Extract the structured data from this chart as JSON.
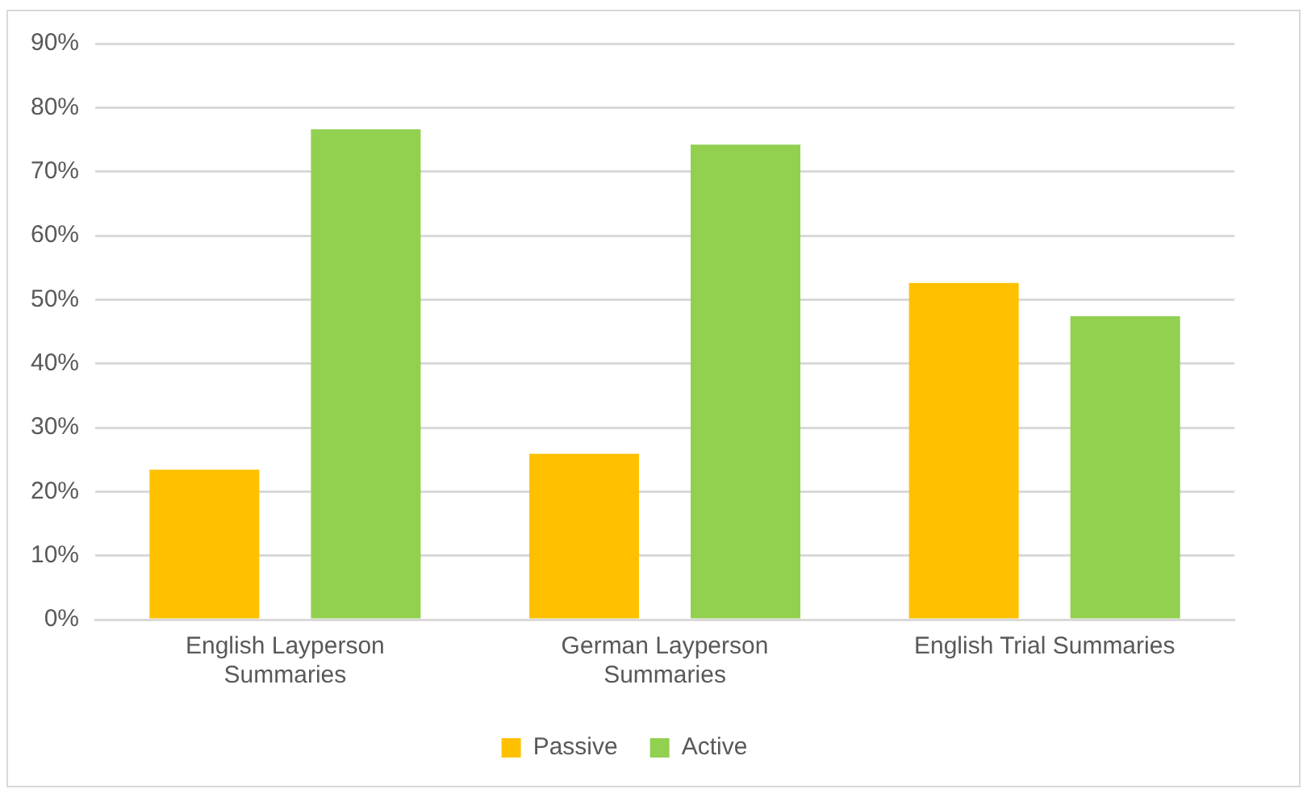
{
  "chart_data": {
    "type": "bar",
    "categories": [
      "English Layperson Summaries",
      "German Layperson Summaries",
      "English Trial Summaries"
    ],
    "series": [
      {
        "name": "Passive",
        "color": "#ffc000",
        "values": [
          23.4,
          25.9,
          52.6
        ]
      },
      {
        "name": "Active",
        "color": "#92d050",
        "values": [
          76.6,
          74.2,
          47.4
        ]
      }
    ],
    "ylim": [
      0,
      90
    ],
    "yticks": [
      {
        "value": 0,
        "label": "0%"
      },
      {
        "value": 10,
        "label": "10%"
      },
      {
        "value": 20,
        "label": "20%"
      },
      {
        "value": 30,
        "label": "30%"
      },
      {
        "value": 40,
        "label": "40%"
      },
      {
        "value": 50,
        "label": "50%"
      },
      {
        "value": 60,
        "label": "60%"
      },
      {
        "value": 70,
        "label": "70%"
      },
      {
        "value": 80,
        "label": "80%"
      },
      {
        "value": 90,
        "label": "90%"
      }
    ],
    "grid": "y",
    "legend": "bottom"
  }
}
